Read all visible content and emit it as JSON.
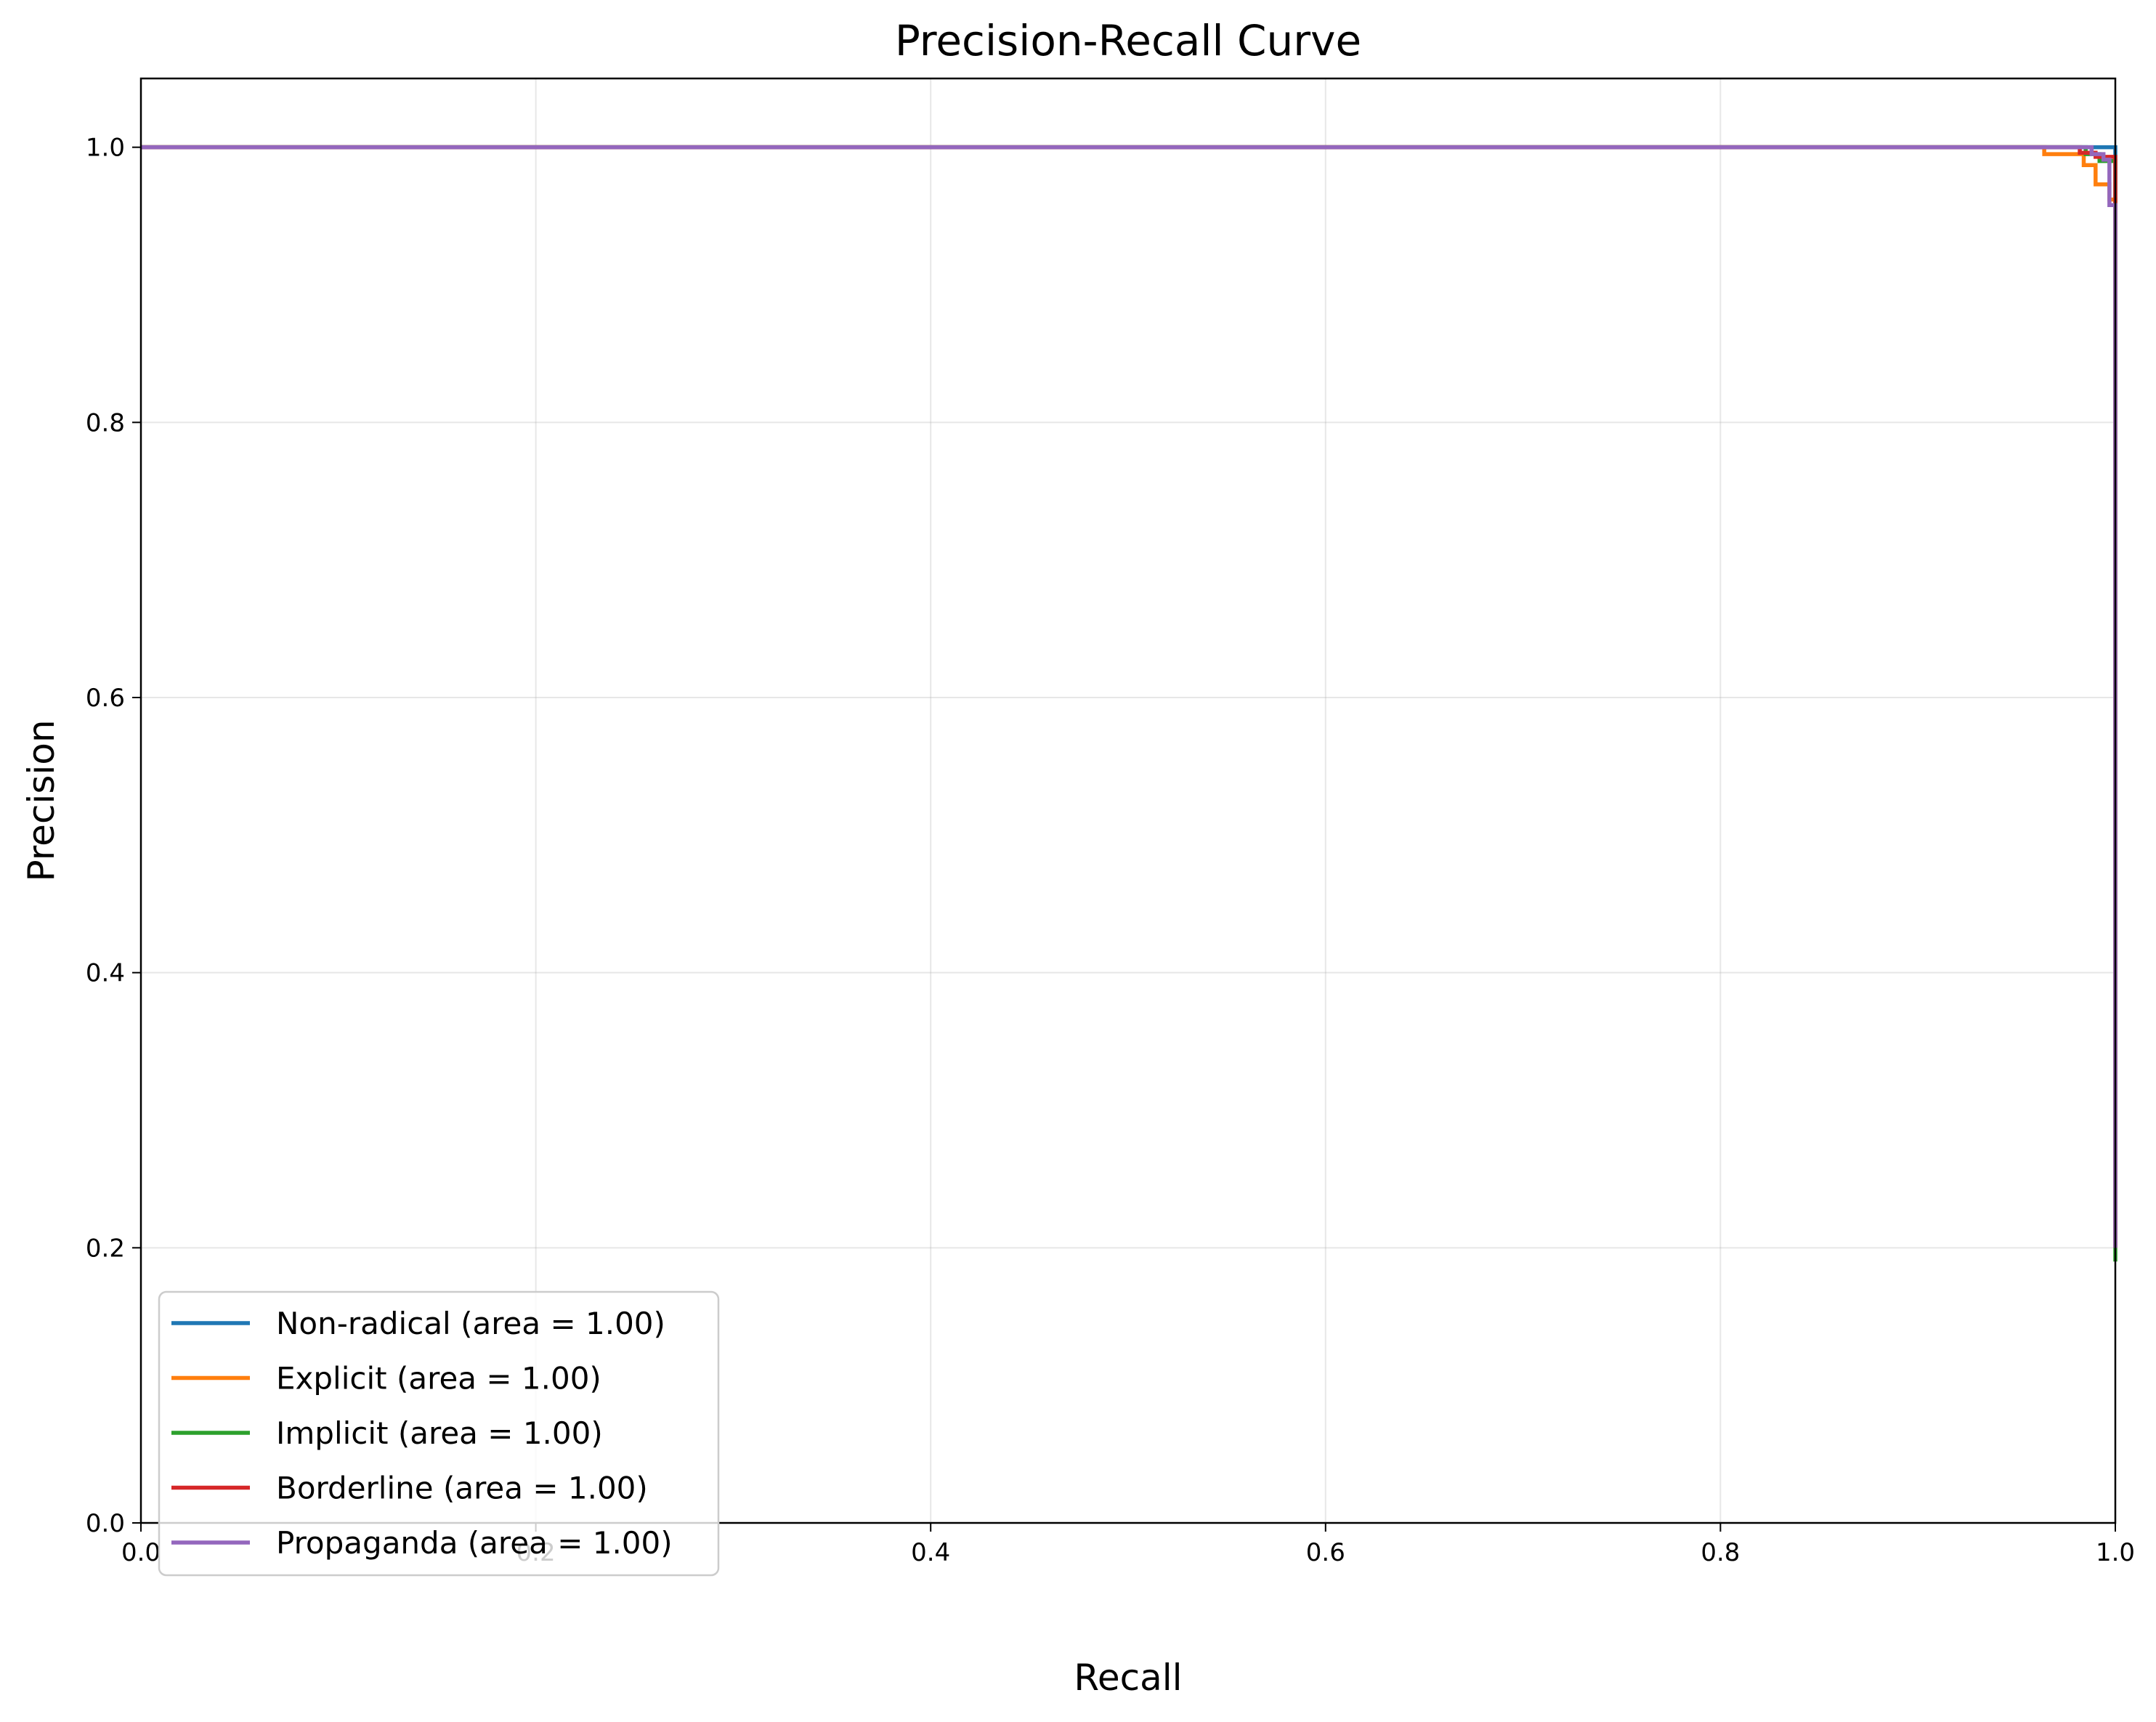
{
  "chart_data": {
    "type": "line",
    "title": "Precision-Recall Curve",
    "xlabel": "Recall",
    "ylabel": "Precision",
    "xlim": [
      0.0,
      1.0
    ],
    "ylim": [
      0.0,
      1.05
    ],
    "xticks": [
      0.0,
      0.2,
      0.4,
      0.6,
      0.8,
      1.0
    ],
    "yticks": [
      0.0,
      0.2,
      0.4,
      0.6,
      0.8,
      1.0
    ],
    "xtick_labels": [
      "0.0",
      "0.2",
      "0.4",
      "0.6",
      "0.8",
      "1.0"
    ],
    "ytick_labels": [
      "0.0",
      "0.2",
      "0.4",
      "0.6",
      "0.8",
      "1.0"
    ],
    "grid": true,
    "legend_position": "lower-left",
    "series": [
      {
        "name": "Non-radical (area = 1.00)",
        "color": "#1f77b4",
        "x": [
          0.0,
          1.0,
          1.0
        ],
        "y": [
          1.0,
          1.0,
          0.2
        ]
      },
      {
        "name": "Explicit (area = 1.00)",
        "color": "#ff7f0e",
        "x": [
          0.0,
          0.964,
          0.964,
          0.984,
          0.984,
          0.99,
          0.99,
          0.997,
          0.997,
          1.0,
          1.0
        ],
        "y": [
          1.0,
          1.0,
          0.995,
          0.995,
          0.987,
          0.987,
          0.973,
          0.973,
          0.962,
          0.962,
          0.2
        ]
      },
      {
        "name": "Implicit (area = 1.00)",
        "color": "#2ca02c",
        "x": [
          0.0,
          0.985,
          0.985,
          0.992,
          0.992,
          1.0,
          1.0
        ],
        "y": [
          1.0,
          1.0,
          0.995,
          0.995,
          0.99,
          0.99,
          0.19
        ]
      },
      {
        "name": "Borderline (area = 1.00)",
        "color": "#d62728",
        "x": [
          0.0,
          0.982,
          0.982,
          0.99,
          0.99,
          1.0,
          1.0
        ],
        "y": [
          1.0,
          1.0,
          0.996,
          0.996,
          0.993,
          0.993,
          0.2
        ]
      },
      {
        "name": "Propaganda (area = 1.00)",
        "color": "#9467bd",
        "x": [
          0.0,
          0.988,
          0.988,
          0.994,
          0.994,
          0.997,
          0.997,
          1.0,
          1.0
        ],
        "y": [
          1.0,
          1.0,
          0.995,
          0.995,
          0.991,
          0.991,
          0.958,
          0.958,
          0.2
        ]
      }
    ]
  }
}
